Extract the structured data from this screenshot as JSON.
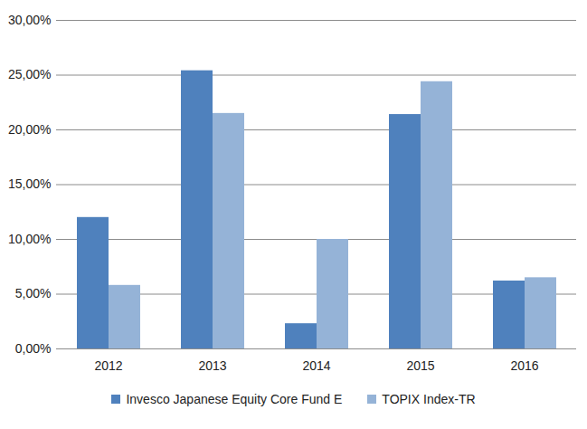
{
  "chart_data": {
    "type": "bar",
    "categories": [
      "2012",
      "2013",
      "2014",
      "2015",
      "2016"
    ],
    "series": [
      {
        "name": "Invesco Japanese Equity Core Fund E",
        "color": "#4f81bd",
        "values": [
          12.0,
          25.4,
          2.3,
          21.4,
          6.2
        ]
      },
      {
        "name": "TOPIX Index-TR",
        "color": "#95b3d7",
        "values": [
          5.8,
          21.5,
          10.0,
          24.4,
          6.5
        ]
      }
    ],
    "ylim": [
      0,
      30
    ],
    "yticks": [
      {
        "value": 0,
        "label": "0,00%"
      },
      {
        "value": 5,
        "label": "5,00%"
      },
      {
        "value": 10,
        "label": "10,00%"
      },
      {
        "value": 15,
        "label": "15,00%"
      },
      {
        "value": 20,
        "label": "20,00%"
      },
      {
        "value": 25,
        "label": "25,00%"
      },
      {
        "value": 30,
        "label": "30,00%"
      }
    ],
    "grid": true,
    "legend": "bottom"
  }
}
